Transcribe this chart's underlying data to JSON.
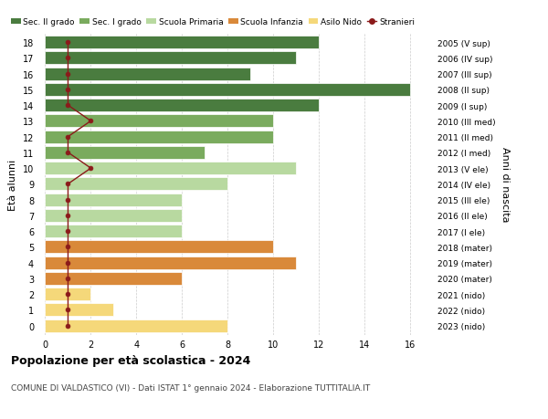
{
  "ages": [
    18,
    17,
    16,
    15,
    14,
    13,
    12,
    11,
    10,
    9,
    8,
    7,
    6,
    5,
    4,
    3,
    2,
    1,
    0
  ],
  "right_labels": [
    "2005 (V sup)",
    "2006 (IV sup)",
    "2007 (III sup)",
    "2008 (II sup)",
    "2009 (I sup)",
    "2010 (III med)",
    "2011 (II med)",
    "2012 (I med)",
    "2013 (V ele)",
    "2014 (IV ele)",
    "2015 (III ele)",
    "2016 (II ele)",
    "2017 (I ele)",
    "2018 (mater)",
    "2019 (mater)",
    "2020 (mater)",
    "2021 (nido)",
    "2022 (nido)",
    "2023 (nido)"
  ],
  "bar_values": [
    12,
    11,
    9,
    16,
    12,
    10,
    10,
    7,
    11,
    8,
    6,
    6,
    6,
    10,
    11,
    6,
    2,
    3,
    8
  ],
  "bar_colors": [
    "#4a7c3f",
    "#4a7c3f",
    "#4a7c3f",
    "#4a7c3f",
    "#4a7c3f",
    "#7aab5e",
    "#7aab5e",
    "#7aab5e",
    "#b8d9a0",
    "#b8d9a0",
    "#b8d9a0",
    "#b8d9a0",
    "#b8d9a0",
    "#d9893a",
    "#d9893a",
    "#d9893a",
    "#f5d87a",
    "#f5d87a",
    "#f5d87a"
  ],
  "stranieri_values": [
    1,
    1,
    1,
    1,
    1,
    2,
    1,
    1,
    2,
    1,
    1,
    1,
    1,
    1,
    1,
    1,
    1,
    1,
    1
  ],
  "legend_labels": [
    "Sec. II grado",
    "Sec. I grado",
    "Scuola Primaria",
    "Scuola Infanzia",
    "Asilo Nido",
    "Stranieri"
  ],
  "legend_colors": [
    "#4a7c3f",
    "#7aab5e",
    "#b8d9a0",
    "#d9893a",
    "#f5d87a",
    "#a83232"
  ],
  "title": "Popolazione per età scolastica - 2024",
  "subtitle": "COMUNE DI VALDASTICO (VI) - Dati ISTAT 1° gennaio 2024 - Elaborazione TUTTITALIA.IT",
  "ylabel": "Età alunni",
  "right_ylabel": "Anni di nascita",
  "xlim_left": -0.3,
  "xlim_right": 17,
  "xticks": [
    0,
    2,
    4,
    6,
    8,
    10,
    12,
    14,
    16
  ],
  "background_color": "#ffffff",
  "bar_height": 0.82,
  "stranieri_color": "#8b1a1a",
  "grid_color": "#cccccc"
}
